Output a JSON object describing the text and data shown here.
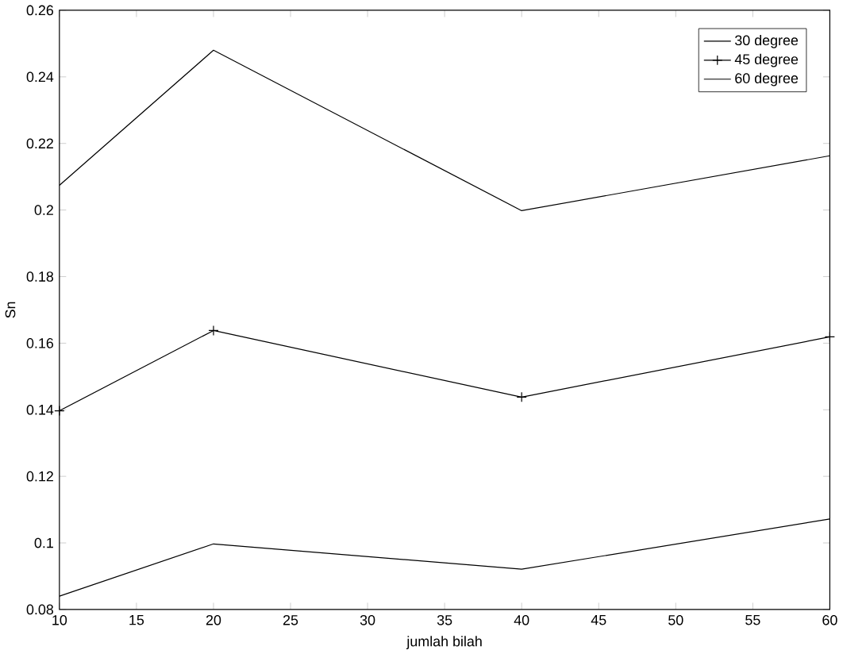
{
  "chart_data": {
    "type": "line",
    "xlabel": "jumlah bilah",
    "ylabel": "Sn",
    "x": [
      10,
      20,
      40,
      60
    ],
    "series": [
      {
        "name": "30 degree",
        "color": "#000000",
        "marker": "none",
        "values": [
          0.084,
          0.0997,
          0.0921,
          0.1072
        ]
      },
      {
        "name": "45 degree",
        "color": "#000000",
        "marker": "cross",
        "values": [
          0.1397,
          0.1638,
          0.1438,
          0.1619
        ]
      },
      {
        "name": "60 degree",
        "color": "#000000",
        "marker": "none",
        "values": [
          0.2074,
          0.248,
          0.1998,
          0.2163
        ]
      }
    ],
    "xlim": [
      10,
      60
    ],
    "xticks": [
      10,
      15,
      20,
      25,
      30,
      35,
      40,
      45,
      50,
      55,
      60
    ],
    "ylim": [
      0.08,
      0.26
    ],
    "yticks": [
      0.08,
      0.1,
      0.12,
      0.14,
      0.16,
      0.18,
      0.2,
      0.22,
      0.24,
      0.26
    ],
    "grid": false,
    "legend": "top right",
    "line_style": "solid"
  }
}
